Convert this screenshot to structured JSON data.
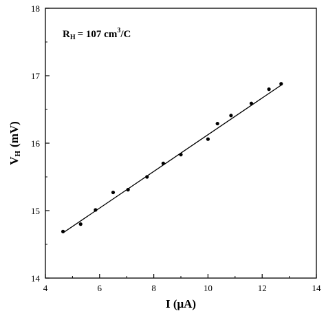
{
  "chart_data": {
    "type": "scatter",
    "xlabel": {
      "main": "I",
      "unit": "(μA)"
    },
    "ylabel": {
      "main": "V",
      "sub": "H",
      "unit": "(mV)"
    },
    "xlim": [
      4,
      14
    ],
    "ylim": [
      14,
      18
    ],
    "x_ticks": [
      4,
      6,
      8,
      10,
      12,
      14
    ],
    "y_ticks": [
      14,
      15,
      16,
      17,
      18
    ],
    "annotation": {
      "prefix": "R",
      "sub": "H",
      "value": "= 107 cm",
      "sup": "3",
      "suffix": "/C"
    },
    "series": [
      {
        "marker": "circle",
        "color": "#000000",
        "points": [
          [
            4.65,
            14.69
          ],
          [
            5.3,
            14.8
          ],
          [
            5.85,
            15.01
          ],
          [
            6.5,
            15.27
          ],
          [
            7.05,
            15.31
          ],
          [
            7.75,
            15.5
          ],
          [
            8.35,
            15.7
          ],
          [
            9.0,
            15.83
          ],
          [
            10.0,
            16.06
          ],
          [
            10.35,
            16.29
          ],
          [
            10.85,
            16.41
          ],
          [
            11.6,
            16.59
          ],
          [
            12.25,
            16.8
          ],
          [
            12.7,
            16.88
          ]
        ]
      }
    ],
    "fit_line": {
      "color": "#000000",
      "x": [
        4.65,
        12.7
      ],
      "y": [
        14.67,
        16.86
      ]
    }
  }
}
